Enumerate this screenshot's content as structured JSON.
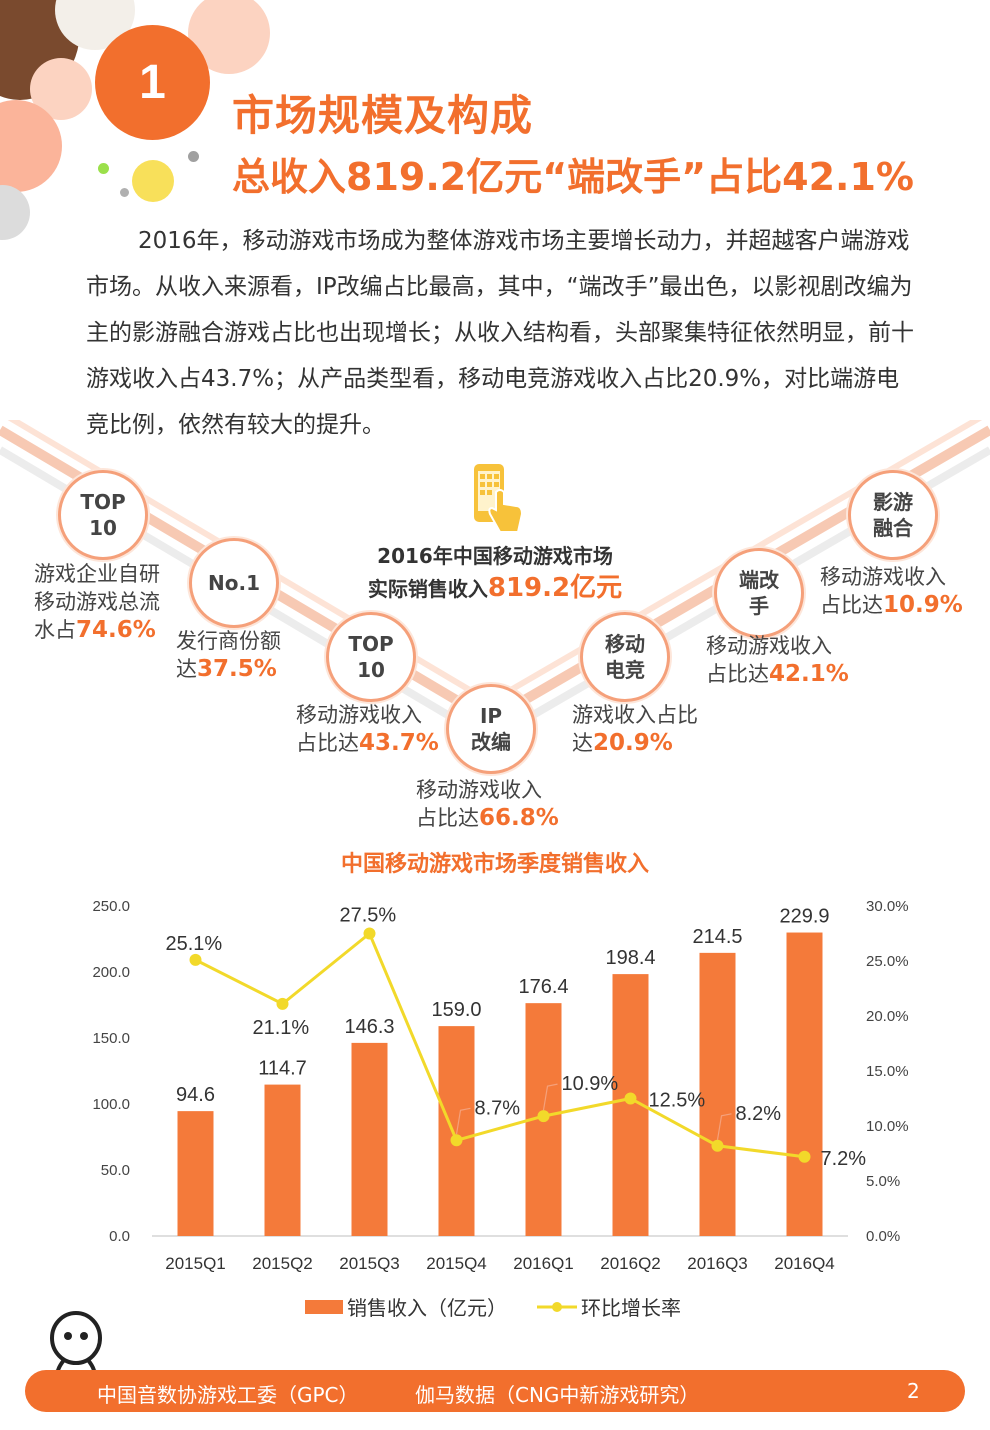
{
  "header": {
    "section_number": "1",
    "title": "市场规模及构成",
    "subtitle": "总收入819.2亿元“端改手”占比42.1%"
  },
  "intro": {
    "paragraph": "2016年，移动游戏市场成为整体游戏市场主要增长动力，并超越客户端游戏市场。从收入来源看，IP改编占比最高，其中，“端改手”最出色，以影视剧改编为主的影游融合游戏占比也出现增长；从收入结构看，头部聚集特征依然明显，前十游戏收入占43.7%；从产品类型看，移动电竞游戏收入占比20.9%，对比端游电竞比例，依然有较大的提升。"
  },
  "center": {
    "line1": "2016年中国移动游戏市场",
    "line2_prefix": "实际销售收入",
    "line2_value": "819.2亿元"
  },
  "stats": [
    {
      "badge_l1": "TOP",
      "badge_l2": "10",
      "desc_l1": "游戏企业自研",
      "desc_l2": "移动游戏总流",
      "desc_l3": "水占",
      "value": "74.6%"
    },
    {
      "badge_l1": "No.1",
      "badge_l2": "",
      "desc_l1": "发行商份额",
      "desc_l2": "达",
      "value": "37.5%"
    },
    {
      "badge_l1": "TOP",
      "badge_l2": "10",
      "desc_l1": "移动游戏收入",
      "desc_l2": "占比达",
      "value": "43.7%"
    },
    {
      "badge_l1": "IP",
      "badge_l2": "改编",
      "desc_l1": "移动游戏收入",
      "desc_l2": "占比达",
      "value": "66.8%"
    },
    {
      "badge_l1": "移动",
      "badge_l2": "电竞",
      "desc_l1": "游戏收入占比",
      "desc_l2": "达",
      "value": "20.9%"
    },
    {
      "badge_l1": "端改",
      "badge_l2": "手",
      "desc_l1": "移动游戏收入",
      "desc_l2": "占比达",
      "value": "42.1%"
    },
    {
      "badge_l1": "影游",
      "badge_l2": "融合",
      "desc_l1": "移动游戏收入",
      "desc_l2": "占比达",
      "value": "10.9%"
    }
  ],
  "chart_data": {
    "type": "bar",
    "title": "中国移动游戏市场季度销售收入",
    "categories": [
      "2015Q1",
      "2015Q2",
      "2015Q3",
      "2015Q4",
      "2016Q1",
      "2016Q2",
      "2016Q3",
      "2016Q4"
    ],
    "series": [
      {
        "name": "销售收入（亿元）",
        "type": "bar",
        "axis": "left",
        "values": [
          94.6,
          114.7,
          146.3,
          159.0,
          176.4,
          198.4,
          214.5,
          229.9
        ],
        "labels": [
          "94.6",
          "114.7",
          "146.3",
          "159.0",
          "176.4",
          "198.4",
          "214.5",
          "229.9"
        ]
      },
      {
        "name": "环比增长率",
        "type": "line",
        "axis": "right",
        "values": [
          25.1,
          21.1,
          27.5,
          8.7,
          10.9,
          12.5,
          8.2,
          7.2
        ],
        "labels": [
          "25.1%",
          "21.1%",
          "27.5%",
          "8.7%",
          "10.9%",
          "12.5%",
          "8.2%",
          "7.2%"
        ]
      }
    ],
    "left_axis": {
      "ylim": [
        0,
        250
      ],
      "ticks": [
        "250.0",
        "200.0",
        "150.0",
        "100.0",
        "50.0",
        "0.0"
      ]
    },
    "right_axis": {
      "ylim": [
        0,
        30
      ],
      "ticks": [
        "30.0%",
        "25.0%",
        "20.0%",
        "15.0%",
        "10.0%",
        "5.0%",
        "0.0%"
      ]
    },
    "legend_position": "bottom",
    "colors": {
      "bar": "#f47a3a",
      "line": "#f2d92a"
    }
  },
  "footer": {
    "left": "中国音数协游戏工委（GPC）",
    "middle": "伽马数据（CNG中新游戏研究）",
    "page": "2"
  },
  "colors": {
    "accent": "#f26f2d",
    "badge_border": "#f5a07a"
  }
}
